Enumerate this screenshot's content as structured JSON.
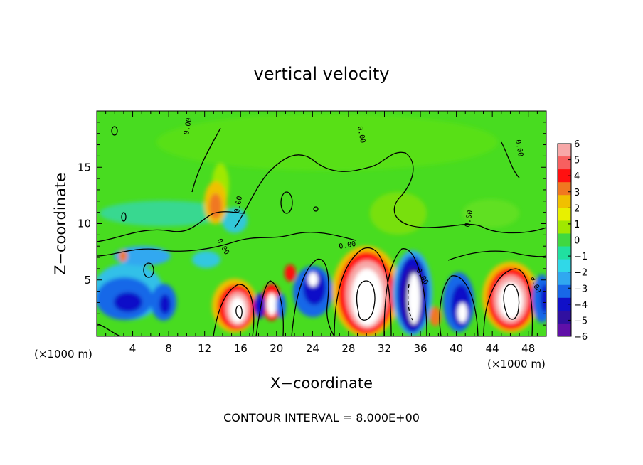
{
  "chart_data": {
    "type": "heatmap",
    "title": "vertical velocity",
    "xlabel": "X−coordinate",
    "ylabel": "Z−coordinate",
    "x_unit_left": "(×1000 m)",
    "x_unit_right": "(×1000 m)",
    "footer": "CONTOUR INTERVAL = 8.000E+00",
    "xlim": [
      0,
      50
    ],
    "ylim": [
      0,
      20
    ],
    "x_ticks": [
      "4",
      "8",
      "12",
      "16",
      "20",
      "24",
      "28",
      "32",
      "36",
      "40",
      "44",
      "48"
    ],
    "y_ticks": [
      "5",
      "10",
      "15"
    ],
    "colorbar": {
      "range": [
        -6,
        6
      ],
      "labels": [
        "6",
        "5",
        "4",
        "3",
        "2",
        "1",
        "0",
        "−1",
        "−2",
        "−3",
        "−4",
        "−5",
        "−6"
      ],
      "colors": [
        "#f7a8a8",
        "#f76060",
        "#ff1010",
        "#f07820",
        "#f0c000",
        "#e8f000",
        "#a0e800",
        "#40d840",
        "#20e0a0",
        "#30d8e8",
        "#30a8f0",
        "#1868e8",
        "#1010c8",
        "#3010a0",
        "#6010a8"
      ]
    },
    "features": [
      {
        "label": "updraft",
        "x": 15.5,
        "z": 2.5,
        "w": 8
      },
      {
        "label": "updraft",
        "x": 19.5,
        "z": 2.5,
        "w": 5
      },
      {
        "label": "updraft",
        "x": 29.5,
        "z": 4,
        "w": 9
      },
      {
        "label": "updraft",
        "x": 45.5,
        "z": 3.5,
        "w": 9
      },
      {
        "label": "updraft",
        "x": 13.5,
        "z": 11.5,
        "w": 3
      },
      {
        "label": "downdraft",
        "x": 3,
        "z": 3,
        "w": -5
      },
      {
        "label": "downdraft",
        "x": 7.5,
        "z": 3,
        "w": -4
      },
      {
        "label": "downdraft",
        "x": 23.5,
        "z": 4,
        "w": -5
      },
      {
        "label": "downdraft",
        "x": 34.5,
        "z": 4,
        "w": -8
      },
      {
        "label": "downdraft",
        "x": 41,
        "z": 3,
        "w": -5
      },
      {
        "label": "downdraft",
        "x": 49,
        "z": 3.5,
        "w": -3
      }
    ]
  }
}
